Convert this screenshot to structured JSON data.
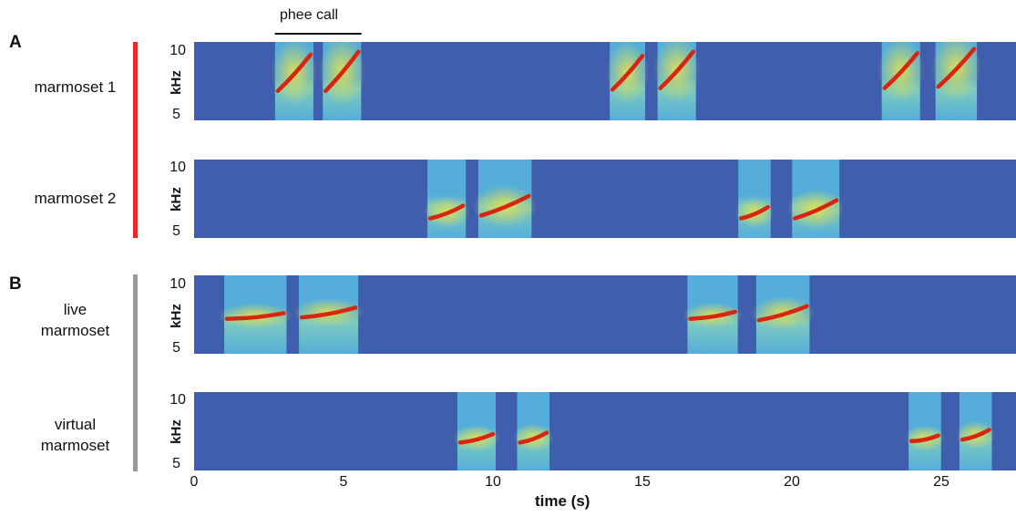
{
  "chart_data": {
    "type": "spectrogram",
    "x_unit": "s",
    "y_unit": "kHz",
    "xlabel": "time (s)",
    "x_ticks": [
      0,
      5,
      10,
      15,
      20,
      25
    ],
    "xlim": [
      0,
      27
    ],
    "y_ticks": [
      5,
      10
    ],
    "ylim": [
      5,
      10.6
    ],
    "ylabel": "kHz",
    "annotation": {
      "text": "phee call",
      "start": 2.7,
      "end": 5.6
    },
    "colors": {
      "background": "#3f5fae",
      "call_band": "#56b2dc",
      "call_glow": "#e8e24a",
      "trace": "#d8250f",
      "panel_a_bar": "#e8282b",
      "panel_b_bar": "#999999"
    },
    "panels": [
      {
        "letter": "A",
        "rows": [
          {
            "label_lines": [
              "marmoset 1"
            ],
            "calls": [
              {
                "start": 2.8,
                "end": 3.9,
                "freq": [
                  7.1,
                  9.7
                ]
              },
              {
                "start": 4.4,
                "end": 5.5,
                "freq": [
                  7.1,
                  9.9
                ]
              },
              {
                "start": 14.0,
                "end": 15.0,
                "freq": [
                  7.2,
                  9.6
                ]
              },
              {
                "start": 15.6,
                "end": 16.7,
                "freq": [
                  7.3,
                  9.9
                ]
              },
              {
                "start": 23.1,
                "end": 24.2,
                "freq": [
                  7.3,
                  9.8
                ]
              },
              {
                "start": 24.9,
                "end": 26.1,
                "freq": [
                  7.4,
                  10.1
                ]
              }
            ]
          },
          {
            "label_lines": [
              "marmoset 2"
            ],
            "calls": [
              {
                "start": 7.9,
                "end": 9.0,
                "freq": [
                  6.4,
                  7.3
                ]
              },
              {
                "start": 9.6,
                "end": 11.2,
                "freq": [
                  6.6,
                  8.0
                ]
              },
              {
                "start": 18.3,
                "end": 19.2,
                "freq": [
                  6.4,
                  7.2
                ]
              },
              {
                "start": 20.1,
                "end": 21.5,
                "freq": [
                  6.4,
                  7.7
                ]
              }
            ]
          }
        ]
      },
      {
        "letter": "B",
        "rows": [
          {
            "label_lines": [
              "live",
              "marmoset"
            ],
            "calls": [
              {
                "start": 1.1,
                "end": 3.0,
                "freq": [
                  7.5,
                  7.9
                ]
              },
              {
                "start": 3.6,
                "end": 5.4,
                "freq": [
                  7.6,
                  8.3
                ]
              },
              {
                "start": 16.6,
                "end": 18.1,
                "freq": [
                  7.5,
                  8.0
                ]
              },
              {
                "start": 18.9,
                "end": 20.5,
                "freq": [
                  7.4,
                  8.4
                ]
              }
            ]
          },
          {
            "label_lines": [
              "virtual",
              "marmoset"
            ],
            "calls": [
              {
                "start": 8.9,
                "end": 10.0,
                "freq": [
                  7.0,
                  7.6
                ]
              },
              {
                "start": 10.9,
                "end": 11.8,
                "freq": [
                  7.0,
                  7.7
                ]
              },
              {
                "start": 24.0,
                "end": 24.9,
                "freq": [
                  7.1,
                  7.5
                ]
              },
              {
                "start": 25.7,
                "end": 26.6,
                "freq": [
                  7.2,
                  7.9
                ]
              }
            ]
          }
        ]
      }
    ]
  }
}
